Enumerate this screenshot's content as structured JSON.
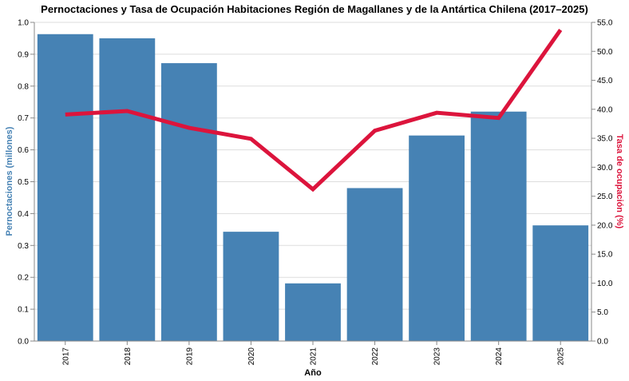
{
  "chart_data": {
    "type": "bar",
    "title": "Pernoctaciones y Tasa de Ocupación Habitaciones Región de Magallanes y de la Antártica Chilena (2017–2025)",
    "xlabel": "Año",
    "categories": [
      "2017",
      "2018",
      "2019",
      "2020",
      "2021",
      "2022",
      "2023",
      "2024",
      "2025"
    ],
    "series": [
      {
        "type": "bar",
        "axis": "left",
        "color": "#4682b4",
        "values": [
          0.963,
          0.95,
          0.872,
          0.343,
          0.181,
          0.48,
          0.645,
          0.72,
          0.363
        ]
      },
      {
        "type": "line",
        "axis": "right",
        "color": "#dc143c",
        "values": [
          39.1,
          39.7,
          36.8,
          34.9,
          26.2,
          36.3,
          39.4,
          38.5,
          53.7
        ]
      }
    ],
    "y_left": {
      "label": "Pernoctaciones (millones)",
      "color": "#4682b4",
      "ylim": [
        0,
        1.0
      ],
      "ticks": [
        "0.0",
        "0.1",
        "0.2",
        "0.3",
        "0.4",
        "0.5",
        "0.6",
        "0.7",
        "0.8",
        "0.9",
        "1.0"
      ]
    },
    "y_right": {
      "label": "Tasa de ocupación (%)",
      "color": "#dc143c",
      "ylim": [
        0,
        55
      ],
      "ticks": [
        "0.0",
        "5.0",
        "10.0",
        "15.0",
        "20.0",
        "25.0",
        "30.0",
        "35.0",
        "40.0",
        "45.0",
        "50.0",
        "55.0"
      ]
    },
    "grid": true
  }
}
